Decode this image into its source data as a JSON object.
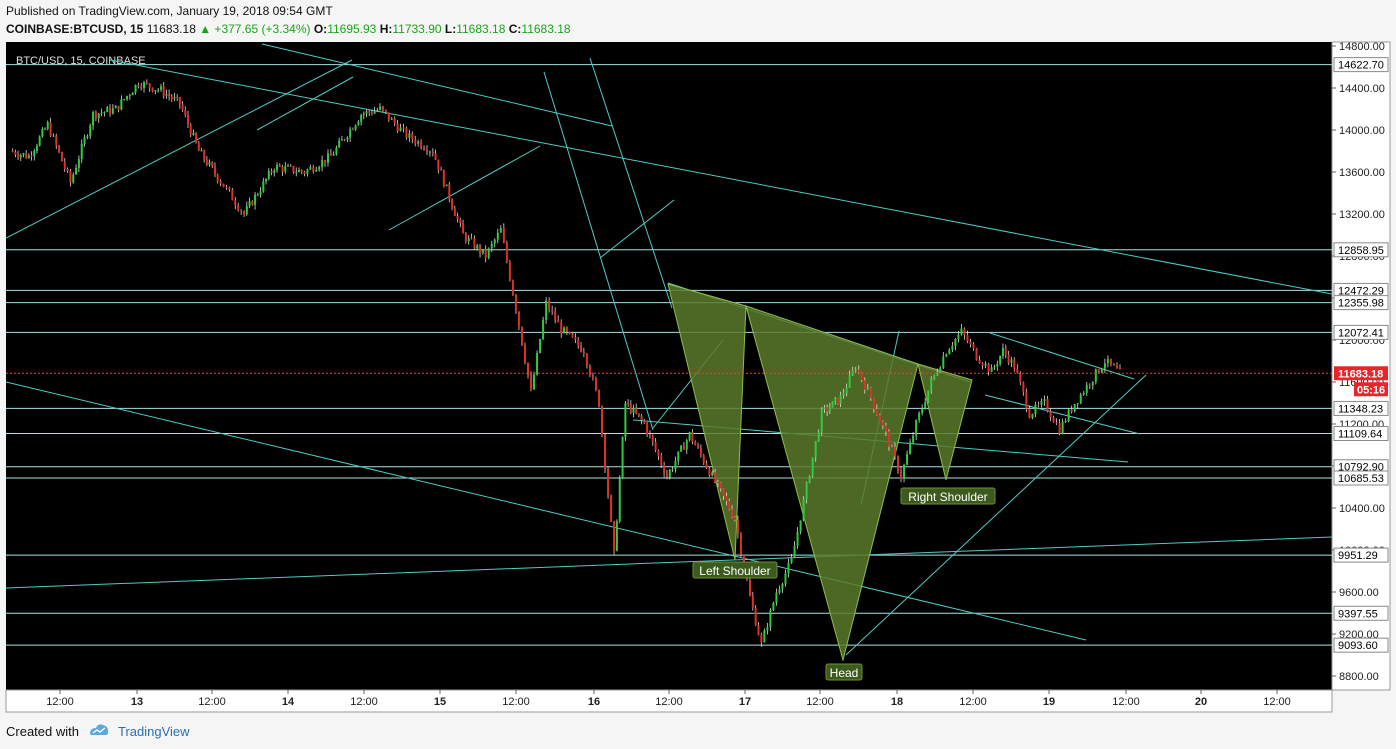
{
  "header": {
    "published": "Published on TradingView.com, January 19, 2018 09:54 GMT",
    "symbol": "COINBASE:BTCUSD, 15",
    "last": "11683.18",
    "change": "▲ +377.65 (+3.34%)",
    "o_label": "O:",
    "o_val": "11695.93",
    "h_label": "H:",
    "h_val": "11733.90",
    "l_label": "L:",
    "l_val": "11683.18",
    "c_label": "C:",
    "c_val": "11683.18"
  },
  "chart_title": "BTC/USD, 15, COINBASE",
  "footer": {
    "created": "Created with",
    "brand": "TradingView"
  },
  "colors": {
    "bg": "#000000",
    "line": "#4ecdc4",
    "pattern_fill": "#5a7a2a",
    "up": "#2ecc40",
    "down": "#e0302a",
    "price_line": "#ff3333"
  },
  "chart_data": {
    "type": "candlestick",
    "symbol": "BTC/USD",
    "interval": "15",
    "ylim": [
      8700,
      14850
    ],
    "x_ticks": [
      "12:00",
      "13",
      "12:00",
      "14",
      "12:00",
      "15",
      "12:00",
      "16",
      "12:00",
      "17",
      "12:00",
      "18",
      "12:00",
      "19",
      "12:00",
      "20",
      "12:00"
    ],
    "y_ticks": [
      "14800.00",
      "14400.00",
      "14000.00",
      "13600.00",
      "13200.00",
      "12800.00",
      "12400.00",
      "12000.00",
      "11600.00",
      "11200.00",
      "10800.00",
      "10400.00",
      "10000.00",
      "9600.00",
      "9200.00",
      "8800.00"
    ],
    "horizontal_levels": [
      "14622.70",
      "12858.95",
      "12472.29",
      "12355.98",
      "12072.41",
      "11348.23",
      "11109.64",
      "10792.90",
      "10685.53",
      "9951.29",
      "9397.55",
      "9093.60"
    ],
    "current_price": "11683.18",
    "countdown": "05:16",
    "price_path": [
      [
        0,
        13800
      ],
      [
        5,
        13750
      ],
      [
        10,
        14050
      ],
      [
        16,
        13500
      ],
      [
        22,
        14150
      ],
      [
        28,
        14200
      ],
      [
        34,
        14450
      ],
      [
        40,
        14380
      ],
      [
        45,
        14250
      ],
      [
        50,
        13800
      ],
      [
        55,
        13550
      ],
      [
        62,
        13200
      ],
      [
        70,
        13650
      ],
      [
        78,
        13600
      ],
      [
        85,
        13750
      ],
      [
        93,
        14150
      ],
      [
        98,
        14200
      ],
      [
        105,
        13950
      ],
      [
        112,
        13800
      ],
      [
        120,
        13000
      ],
      [
        126,
        12800
      ],
      [
        130,
        13050
      ],
      [
        134,
        12300
      ],
      [
        138,
        11500
      ],
      [
        142,
        12350
      ],
      [
        146,
        12100
      ],
      [
        152,
        11900
      ],
      [
        156,
        11400
      ],
      [
        160,
        9950
      ],
      [
        163,
        11400
      ],
      [
        168,
        11200
      ],
      [
        174,
        10700
      ],
      [
        180,
        11100
      ],
      [
        186,
        10700
      ],
      [
        192,
        10300
      ],
      [
        196,
        9550
      ],
      [
        199,
        9100
      ],
      [
        203,
        9600
      ],
      [
        207,
        9900
      ],
      [
        211,
        10600
      ],
      [
        215,
        11300
      ],
      [
        220,
        11450
      ],
      [
        224,
        11750
      ],
      [
        228,
        11450
      ],
      [
        232,
        11100
      ],
      [
        236,
        10700
      ],
      [
        240,
        11200
      ],
      [
        244,
        11600
      ],
      [
        248,
        11900
      ],
      [
        252,
        12080
      ],
      [
        256,
        11850
      ],
      [
        260,
        11700
      ],
      [
        263,
        11900
      ],
      [
        266,
        11750
      ],
      [
        270,
        11300
      ],
      [
        274,
        11400
      ],
      [
        278,
        11150
      ],
      [
        282,
        11400
      ],
      [
        286,
        11600
      ],
      [
        290,
        11800
      ],
      [
        294,
        11683
      ]
    ],
    "annotations": [
      "Left Shoulder",
      "Head",
      "Right Shoulder"
    ]
  }
}
